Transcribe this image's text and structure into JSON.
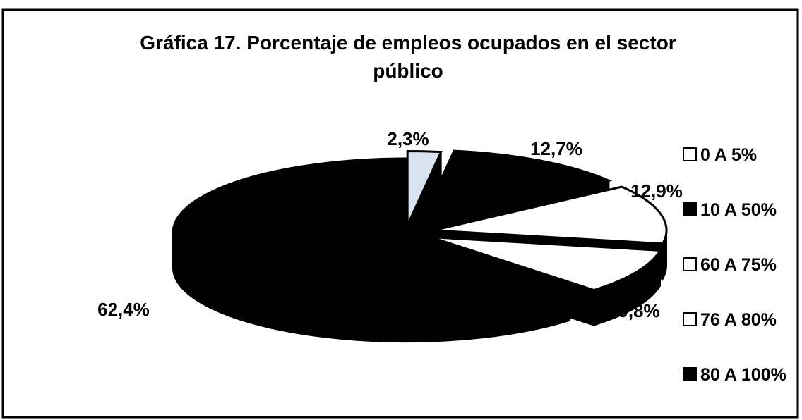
{
  "chart_data": {
    "type": "pie",
    "style": "3d-exploded",
    "title_lines": [
      "Gráfica 17. Porcentaje de empleos ocupados en el sector",
      "público"
    ],
    "legend_position": "right",
    "slices": [
      {
        "category": "0 A 5%",
        "value": 2.3,
        "label": "2,3%",
        "fill": "#d8e4f0"
      },
      {
        "category": "10 A 50%",
        "value": 12.7,
        "label": "12,7%",
        "fill": "#000000"
      },
      {
        "category": "60 A 75%",
        "value": 12.9,
        "label": "12,9%",
        "fill": "#ffffff"
      },
      {
        "category": "76 A 80%",
        "value": 9.8,
        "label": "9,8%",
        "fill": "#ffffff"
      },
      {
        "category": "80 A 100%",
        "value": 62.4,
        "label": "62,4%",
        "fill": "#000000"
      }
    ],
    "legend": [
      {
        "label": "0 A 5%",
        "color": "#ffffff"
      },
      {
        "label": "10 A 50%",
        "color": "#000000"
      },
      {
        "label": "60 A 75%",
        "color": "#ffffff"
      },
      {
        "label": "76 A 80%",
        "color": "#ffffff"
      },
      {
        "label": "80 A 100%",
        "color": "#000000"
      }
    ]
  }
}
